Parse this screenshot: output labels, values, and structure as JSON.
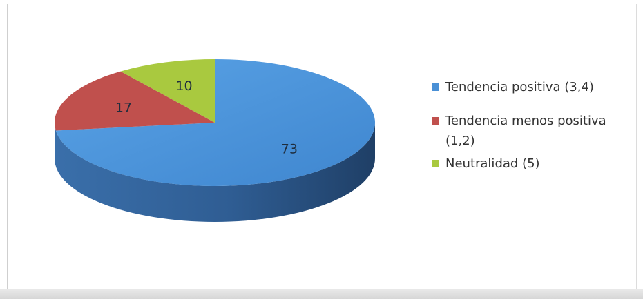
{
  "chart_data": {
    "type": "pie",
    "three_d": true,
    "categories": [
      "Tendencia positiva (3,4)",
      "Tendencia menos positiva (1,2)",
      "Neutralidad (5)"
    ],
    "values": [
      73,
      17,
      10
    ],
    "data_labels": [
      "73",
      "17",
      "10"
    ],
    "colors": [
      "#4a90d6",
      "#c0504d",
      "#a9c93f"
    ],
    "legend_position": "right",
    "legend": [
      {
        "label": "Tendencia positiva (3,4)",
        "color": "#4a90d6"
      },
      {
        "label": "Tendencia menos positiva (1,2)",
        "color": "#c0504d"
      },
      {
        "label": "Neutralidad (5)",
        "color": "#a9c93f"
      }
    ]
  }
}
